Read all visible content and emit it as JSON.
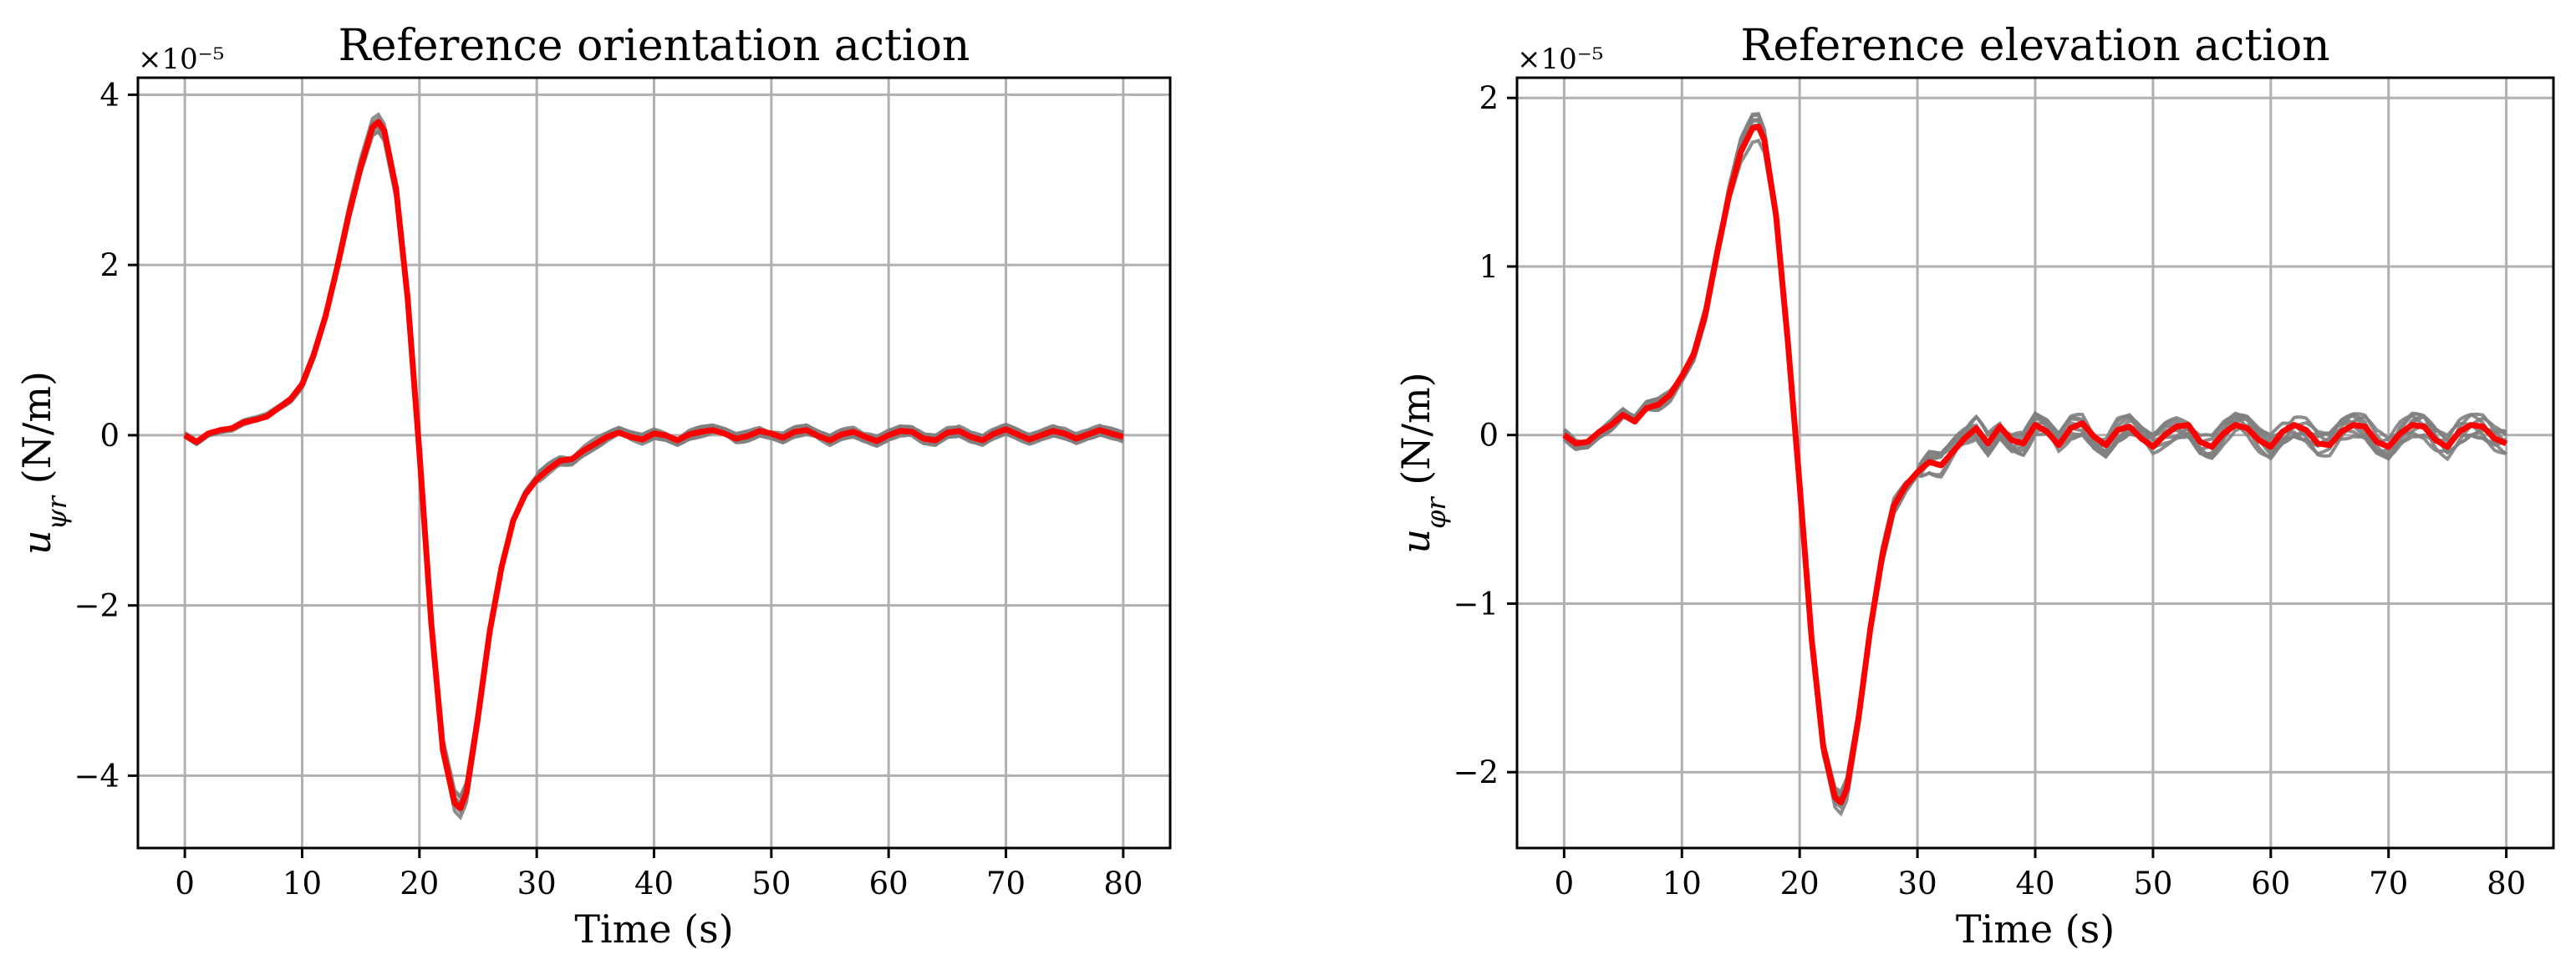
{
  "chart_data": [
    {
      "type": "line",
      "title": "Reference orientation action",
      "xlabel": "Time (s)",
      "ylabel": "u_ψr (N/m)",
      "ylabel_main": "u",
      "ylabel_sub": "ψr",
      "ylabel_unit": " (N/m)",
      "multiplier": "×10⁻⁵",
      "xlim": [
        -4,
        84
      ],
      "ylim": [
        -4.85,
        4.2
      ],
      "xticks": [
        0,
        10,
        20,
        30,
        40,
        50,
        60,
        70,
        80
      ],
      "yticks": [
        -4,
        -2,
        0,
        2,
        4
      ],
      "ytick_labels": [
        "−4",
        "−2",
        "0",
        "2",
        "4"
      ],
      "grid": true,
      "series": [
        {
          "color": "#ff0000",
          "x": [
            0,
            1,
            2,
            3,
            4,
            5,
            6,
            7,
            8,
            9,
            10,
            11,
            12,
            13,
            14,
            15,
            16,
            16.5,
            17,
            18,
            19,
            20,
            21,
            22,
            23,
            23.5,
            24,
            25,
            26,
            27,
            28,
            29,
            30,
            31,
            32,
            33,
            34,
            35,
            36,
            37,
            38,
            39,
            40,
            41,
            42,
            43,
            44,
            45,
            46,
            47,
            48,
            49,
            50,
            51,
            52,
            53,
            54,
            55,
            56,
            57,
            58,
            59,
            60,
            61,
            62,
            63,
            64,
            65,
            66,
            67,
            68,
            69,
            70,
            71,
            72,
            73,
            74,
            75,
            76,
            77,
            78,
            79,
            80
          ],
          "values": [
            0,
            -0.08,
            0.02,
            0.06,
            0.08,
            0.15,
            0.18,
            0.22,
            0.32,
            0.42,
            0.6,
            0.95,
            1.4,
            1.98,
            2.6,
            3.15,
            3.62,
            3.68,
            3.58,
            2.9,
            1.6,
            -0.2,
            -2.2,
            -3.7,
            -4.32,
            -4.38,
            -4.2,
            -3.3,
            -2.3,
            -1.55,
            -1.0,
            -0.7,
            -0.52,
            -0.4,
            -0.3,
            -0.28,
            -0.18,
            -0.1,
            -0.02,
            0.03,
            -0.02,
            -0.05,
            0.02,
            0.0,
            -0.06,
            0.01,
            0.04,
            0.06,
            0.02,
            -0.04,
            -0.01,
            0.05,
            0.02,
            -0.03,
            0.04,
            0.06,
            -0.01,
            -0.06,
            0.01,
            0.04,
            -0.02,
            -0.07,
            0.0,
            0.05,
            0.04,
            -0.04,
            -0.06,
            0.03,
            0.05,
            -0.02,
            -0.06,
            0.02,
            0.07,
            0.01,
            -0.05,
            0.0,
            0.05,
            0.02,
            -0.04,
            0.01,
            0.06,
            0.02,
            -0.02
          ]
        }
      ]
    },
    {
      "type": "line",
      "title": "Reference elevation action",
      "xlabel": "Time (s)",
      "ylabel": "u_φr (N/m)",
      "ylabel_main": "u",
      "ylabel_sub": "φr",
      "ylabel_unit": " (N/m)",
      "multiplier": "×10⁻⁵",
      "xlim": [
        -4,
        84
      ],
      "ylim": [
        -2.45,
        2.12
      ],
      "xticks": [
        0,
        10,
        20,
        30,
        40,
        50,
        60,
        70,
        80
      ],
      "yticks": [
        -2,
        -1,
        0,
        1,
        2
      ],
      "ytick_labels": [
        "−2",
        "−1",
        "0",
        "1",
        "2"
      ],
      "grid": true,
      "series": [
        {
          "color": "#ff0000",
          "x": [
            0,
            1,
            2,
            3,
            4,
            5,
            6,
            7,
            8,
            9,
            10,
            11,
            12,
            13,
            14,
            15,
            16,
            16.5,
            17,
            18,
            19,
            20,
            21,
            22,
            23,
            23.5,
            24,
            25,
            26,
            27,
            28,
            29,
            30,
            31,
            32,
            33,
            34,
            35,
            36,
            37,
            38,
            39,
            40,
            41,
            42,
            43,
            44,
            45,
            46,
            47,
            48,
            49,
            50,
            51,
            52,
            53,
            54,
            55,
            56,
            57,
            58,
            59,
            60,
            61,
            62,
            63,
            64,
            65,
            66,
            67,
            68,
            69,
            70,
            71,
            72,
            73,
            74,
            75,
            76,
            77,
            78,
            79,
            80
          ],
          "values": [
            0,
            -0.05,
            -0.04,
            0.02,
            0.06,
            0.12,
            0.08,
            0.16,
            0.18,
            0.24,
            0.35,
            0.48,
            0.72,
            1.08,
            1.42,
            1.68,
            1.82,
            1.83,
            1.75,
            1.3,
            0.55,
            -0.3,
            -1.2,
            -1.85,
            -2.15,
            -2.18,
            -2.1,
            -1.68,
            -1.15,
            -0.72,
            -0.42,
            -0.3,
            -0.22,
            -0.16,
            -0.18,
            -0.1,
            -0.02,
            0.04,
            -0.05,
            0.05,
            -0.03,
            -0.05,
            0.06,
            0.02,
            -0.06,
            0.04,
            0.07,
            -0.01,
            -0.06,
            0.03,
            0.05,
            -0.02,
            -0.07,
            0.0,
            0.05,
            0.06,
            -0.04,
            -0.07,
            0.01,
            0.06,
            0.04,
            -0.03,
            -0.07,
            0.02,
            0.06,
            0.03,
            -0.05,
            -0.06,
            0.02,
            0.06,
            0.05,
            -0.04,
            -0.07,
            0.01,
            0.06,
            0.05,
            -0.03,
            -0.07,
            0.02,
            0.06,
            0.05,
            -0.02,
            -0.05
          ]
        }
      ]
    }
  ]
}
